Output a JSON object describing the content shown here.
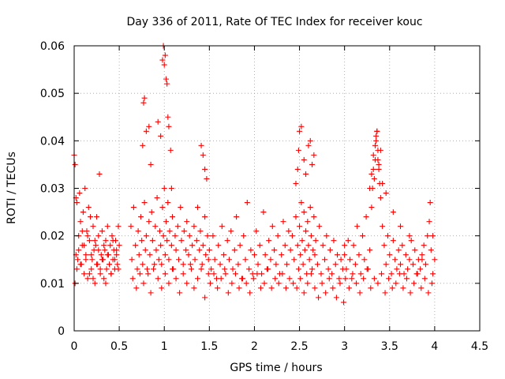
{
  "chart_data": {
    "type": "scatter",
    "title": "Day 336 of 2011, Rate Of TEC Index for receiver kouc",
    "xlabel": "GPS time / hours",
    "ylabel": "ROTI / TECUs",
    "xlim": [
      0,
      4.5
    ],
    "ylim": [
      0,
      0.06
    ],
    "x_ticks": [
      "0",
      "0.5",
      "1",
      "1.5",
      "2",
      "2.5",
      "3",
      "3.5",
      "4",
      "4.5"
    ],
    "y_ticks": [
      "0",
      "0.01",
      "0.02",
      "0.03",
      "0.04",
      "0.05",
      "0.06"
    ],
    "grid": true,
    "marker": "+",
    "color": "#ff0000",
    "series": [
      {
        "x": [
          0.0,
          0.01,
          0.02,
          0.02,
          0.03,
          0.04,
          0.05,
          0.06,
          0.07,
          0.08,
          0.09,
          0.1,
          0.11,
          0.12,
          0.13,
          0.14,
          0.15,
          0.16,
          0.17,
          0.18,
          0.19,
          0.2,
          0.21,
          0.22,
          0.23,
          0.24,
          0.25,
          0.26,
          0.27,
          0.28,
          0.29,
          0.3,
          0.31,
          0.32,
          0.33,
          0.34,
          0.35,
          0.36,
          0.37,
          0.38,
          0.39,
          0.4,
          0.41,
          0.42,
          0.43,
          0.44,
          0.45,
          0.46,
          0.47,
          0.48,
          0.49,
          0.5,
          0.01,
          0.03,
          0.05,
          0.07,
          0.09,
          0.11,
          0.13,
          0.15,
          0.17,
          0.19,
          0.21,
          0.23,
          0.25,
          0.27,
          0.29,
          0.31,
          0.33,
          0.35,
          0.37,
          0.39,
          0.41,
          0.43,
          0.45,
          0.47,
          0.49,
          0.63,
          0.64,
          0.66,
          0.68,
          0.7,
          0.71,
          0.72,
          0.74,
          0.75,
          0.76,
          0.78,
          0.79,
          0.8,
          0.82,
          0.83,
          0.84,
          0.86,
          0.87,
          0.88,
          0.9,
          0.91,
          0.92,
          0.94,
          0.95,
          0.96,
          0.97,
          0.98,
          0.99,
          1.0,
          1.01,
          1.02,
          1.03,
          1.04,
          1.05,
          1.06,
          1.08,
          1.09,
          1.1,
          1.12,
          1.13,
          1.15,
          1.16,
          1.18,
          1.19,
          1.21,
          1.22,
          1.24,
          1.25,
          1.27,
          1.28,
          1.3,
          1.31,
          1.33,
          1.34,
          1.36,
          1.37,
          1.39,
          1.4,
          1.42,
          1.43,
          1.45,
          1.46,
          1.48,
          1.49,
          0.65,
          0.69,
          0.73,
          0.77,
          0.81,
          0.85,
          0.89,
          0.93,
          0.97,
          1.01,
          1.05,
          1.09,
          1.13,
          1.17,
          1.21,
          1.25,
          1.29,
          1.33,
          1.37,
          1.41,
          1.45,
          1.49,
          0.76,
          0.77,
          0.78,
          0.8,
          0.83,
          0.85,
          0.93,
          0.96,
          0.98,
          0.99,
          1.0,
          1.01,
          1.02,
          1.03,
          1.04,
          1.05,
          1.07,
          1.08,
          1.41,
          1.43,
          1.45,
          1.47,
          1.5,
          1.52,
          1.54,
          1.56,
          1.58,
          1.6,
          1.62,
          1.64,
          1.66,
          1.68,
          1.7,
          1.72,
          1.74,
          1.76,
          1.78,
          1.8,
          1.82,
          1.84,
          1.86,
          1.88,
          1.9,
          1.92,
          1.94,
          1.96,
          1.98,
          2.0,
          2.02,
          2.04,
          2.06,
          2.08,
          2.1,
          2.12,
          2.14,
          2.16,
          2.18,
          2.2,
          2.22,
          2.24,
          2.26,
          2.28,
          2.3,
          2.32,
          2.34,
          2.36,
          2.38,
          2.4,
          1.51,
          1.55,
          1.59,
          1.63,
          1.67,
          1.71,
          1.75,
          1.79,
          1.83,
          1.87,
          1.91,
          1.95,
          1.99,
          2.03,
          2.07,
          2.11,
          2.15,
          2.19,
          2.23,
          2.27,
          2.31,
          2.35,
          2.39,
          2.42,
          2.44,
          2.46,
          2.48,
          2.49,
          2.5,
          2.51,
          2.52,
          2.53,
          2.54,
          2.55,
          2.56,
          2.57,
          2.58,
          2.59,
          2.6,
          2.61,
          2.62,
          2.63,
          2.64,
          2.65,
          2.66,
          2.67,
          2.68,
          2.7,
          2.72,
          2.74,
          2.76,
          2.78,
          2.8,
          2.82,
          2.84,
          2.86,
          2.88,
          2.9,
          2.92,
          2.94,
          2.96,
          2.98,
          3.0,
          2.43,
          2.47,
          2.51,
          2.55,
          2.59,
          2.63,
          2.67,
          2.71,
          2.75,
          2.79,
          2.83,
          2.87,
          2.91,
          2.95,
          2.99,
          2.46,
          2.48,
          2.49,
          2.5,
          2.52,
          2.55,
          2.57,
          2.6,
          2.62,
          2.64,
          2.66,
          3.0,
          3.02,
          3.04,
          3.06,
          3.08,
          3.1,
          3.12,
          3.14,
          3.16,
          3.18,
          3.2,
          3.22,
          3.24,
          3.26,
          3.28,
          3.3,
          3.31,
          3.32,
          3.33,
          3.34,
          3.35,
          3.36,
          3.37,
          3.38,
          3.39,
          3.4,
          3.42,
          3.44,
          3.46,
          3.48,
          3.5,
          3.52,
          3.54,
          3.56,
          3.58,
          3.6,
          3.62,
          3.64,
          3.66,
          3.68,
          3.7,
          3.72,
          3.74,
          3.76,
          3.78,
          3.8,
          3.82,
          3.84,
          3.86,
          3.88,
          3.9,
          3.92,
          3.94,
          3.96,
          3.98,
          4.0,
          3.01,
          3.05,
          3.09,
          3.13,
          3.17,
          3.21,
          3.25,
          3.29,
          3.33,
          3.37,
          3.41,
          3.45,
          3.49,
          3.53,
          3.57,
          3.61,
          3.65,
          3.69,
          3.73,
          3.77,
          3.81,
          3.85,
          3.89,
          3.93,
          3.97,
          3.28,
          3.3,
          3.32,
          3.34,
          3.35,
          3.36,
          3.37,
          3.38,
          3.4,
          3.42,
          3.46,
          3.54,
          3.62,
          3.72,
          3.86,
          3.95,
          3.98
        ],
        "y": [
          0.037,
          0.035,
          0.028,
          0.016,
          0.027,
          0.015,
          0.02,
          0.029,
          0.023,
          0.014,
          0.018,
          0.025,
          0.012,
          0.03,
          0.016,
          0.021,
          0.011,
          0.026,
          0.019,
          0.024,
          0.013,
          0.015,
          0.022,
          0.017,
          0.01,
          0.018,
          0.024,
          0.014,
          0.02,
          0.033,
          0.012,
          0.016,
          0.021,
          0.015,
          0.011,
          0.017,
          0.019,
          0.013,
          0.022,
          0.016,
          0.014,
          0.018,
          0.012,
          0.02,
          0.015,
          0.017,
          0.013,
          0.019,
          0.016,
          0.014,
          0.022,
          0.018,
          0.01,
          0.013,
          0.017,
          0.014,
          0.021,
          0.018,
          0.015,
          0.02,
          0.012,
          0.016,
          0.011,
          0.019,
          0.014,
          0.017,
          0.013,
          0.015,
          0.018,
          0.01,
          0.016,
          0.014,
          0.012,
          0.019,
          0.015,
          0.017,
          0.013,
          0.022,
          0.015,
          0.026,
          0.018,
          0.013,
          0.021,
          0.016,
          0.024,
          0.019,
          0.014,
          0.027,
          0.017,
          0.02,
          0.012,
          0.023,
          0.016,
          0.025,
          0.019,
          0.013,
          0.022,
          0.017,
          0.028,
          0.015,
          0.021,
          0.018,
          0.014,
          0.026,
          0.02,
          0.03,
          0.016,
          0.023,
          0.019,
          0.027,
          0.015,
          0.021,
          0.018,
          0.024,
          0.013,
          0.02,
          0.017,
          0.022,
          0.015,
          0.026,
          0.019,
          0.014,
          0.021,
          0.017,
          0.023,
          0.016,
          0.02,
          0.013,
          0.018,
          0.022,
          0.015,
          0.019,
          0.026,
          0.017,
          0.021,
          0.014,
          0.018,
          0.024,
          0.016,
          0.02,
          0.015,
          0.011,
          0.009,
          0.012,
          0.01,
          0.013,
          0.008,
          0.014,
          0.011,
          0.009,
          0.012,
          0.01,
          0.013,
          0.011,
          0.008,
          0.012,
          0.01,
          0.014,
          0.009,
          0.011,
          0.013,
          0.007,
          0.012,
          0.039,
          0.048,
          0.049,
          0.042,
          0.043,
          0.035,
          0.044,
          0.041,
          0.057,
          0.06,
          0.056,
          0.058,
          0.053,
          0.052,
          0.045,
          0.043,
          0.038,
          0.03,
          0.039,
          0.037,
          0.034,
          0.032,
          0.017,
          0.013,
          0.02,
          0.015,
          0.011,
          0.018,
          0.014,
          0.022,
          0.016,
          0.012,
          0.019,
          0.015,
          0.021,
          0.013,
          0.017,
          0.024,
          0.014,
          0.018,
          0.011,
          0.02,
          0.015,
          0.027,
          0.013,
          0.017,
          0.012,
          0.016,
          0.021,
          0.014,
          0.018,
          0.012,
          0.025,
          0.016,
          0.013,
          0.019,
          0.015,
          0.022,
          0.017,
          0.014,
          0.02,
          0.012,
          0.016,
          0.023,
          0.018,
          0.014,
          0.021,
          0.017,
          0.01,
          0.012,
          0.009,
          0.011,
          0.013,
          0.008,
          0.01,
          0.012,
          0.009,
          0.011,
          0.01,
          0.008,
          0.011,
          0.012,
          0.009,
          0.01,
          0.013,
          0.009,
          0.011,
          0.01,
          0.012,
          0.009,
          0.011,
          0.02,
          0.015,
          0.024,
          0.018,
          0.013,
          0.022,
          0.016,
          0.027,
          0.019,
          0.014,
          0.025,
          0.017,
          0.021,
          0.012,
          0.023,
          0.018,
          0.015,
          0.026,
          0.02,
          0.013,
          0.017,
          0.024,
          0.016,
          0.019,
          0.014,
          0.022,
          0.012,
          0.018,
          0.015,
          0.02,
          0.013,
          0.017,
          0.012,
          0.019,
          0.014,
          0.016,
          0.011,
          0.015,
          0.013,
          0.018,
          0.01,
          0.009,
          0.011,
          0.008,
          0.01,
          0.012,
          0.009,
          0.007,
          0.01,
          0.008,
          0.011,
          0.009,
          0.007,
          0.01,
          0.006,
          0.031,
          0.034,
          0.038,
          0.042,
          0.043,
          0.036,
          0.033,
          0.039,
          0.04,
          0.035,
          0.037,
          0.016,
          0.013,
          0.019,
          0.015,
          0.011,
          0.018,
          0.014,
          0.022,
          0.016,
          0.012,
          0.02,
          0.015,
          0.024,
          0.013,
          0.017,
          0.026,
          0.03,
          0.034,
          0.032,
          0.036,
          0.04,
          0.042,
          0.038,
          0.035,
          0.031,
          0.028,
          0.022,
          0.018,
          0.014,
          0.02,
          0.016,
          0.012,
          0.019,
          0.015,
          0.013,
          0.017,
          0.014,
          0.018,
          0.012,
          0.016,
          0.013,
          0.015,
          0.019,
          0.014,
          0.017,
          0.012,
          0.015,
          0.013,
          0.016,
          0.018,
          0.014,
          0.02,
          0.023,
          0.017,
          0.012,
          0.015,
          0.011,
          0.009,
          0.012,
          0.01,
          0.008,
          0.011,
          0.013,
          0.009,
          0.011,
          0.01,
          0.012,
          0.008,
          0.011,
          0.009,
          0.01,
          0.012,
          0.009,
          0.011,
          0.008,
          0.01,
          0.012,
          0.009,
          0.011,
          0.008,
          0.01,
          0.03,
          0.033,
          0.037,
          0.039,
          0.041,
          0.042,
          0.036,
          0.034,
          0.038,
          0.031,
          0.029,
          0.025,
          0.022,
          0.02,
          0.015,
          0.027,
          0.02
        ]
      }
    ]
  }
}
